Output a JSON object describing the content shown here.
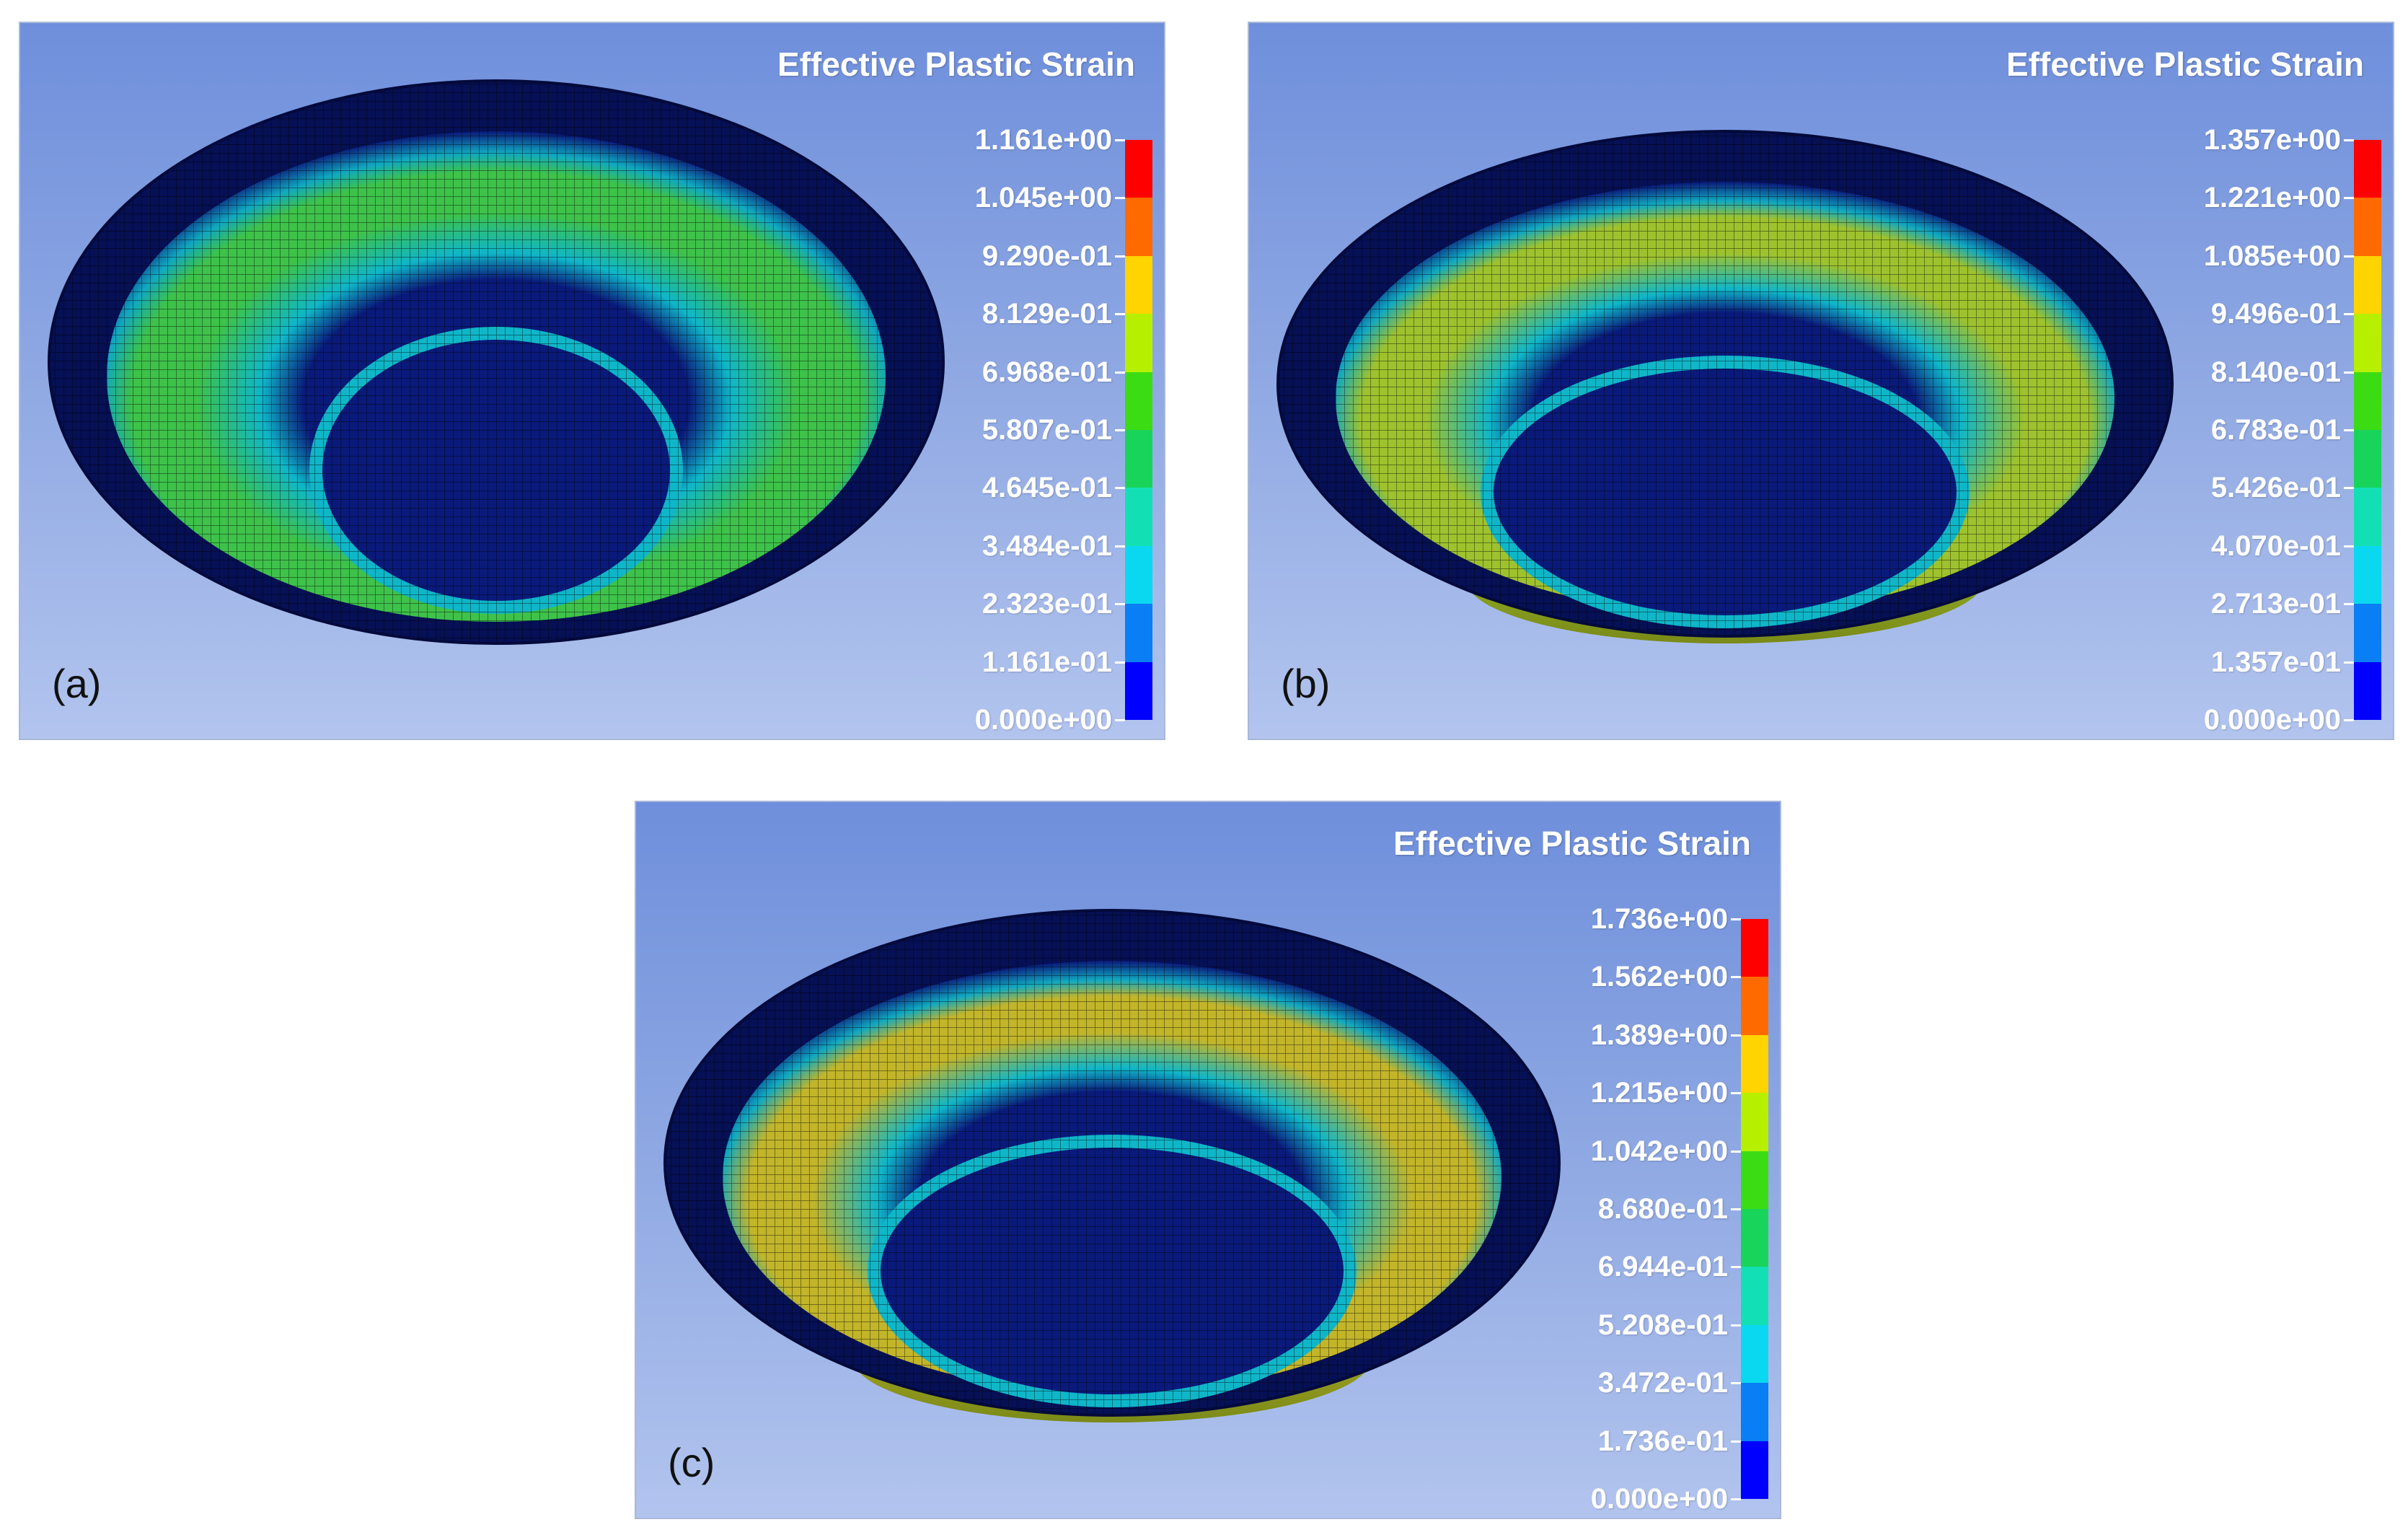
{
  "panels": [
    {
      "id": "a",
      "label": "(a)",
      "title": "Effective Plastic Strain",
      "legend": [
        "1.161e+00",
        "1.045e+00",
        "9.290e-01",
        "8.129e-01",
        "6.968e-01",
        "5.807e-01",
        "4.645e-01",
        "3.484e-01",
        "2.323e-01",
        "1.161e-01",
        "0.000e+00"
      ],
      "max_strain_color": "#3ec24a"
    },
    {
      "id": "b",
      "label": "(b)",
      "title": "Effective Plastic Strain",
      "legend": [
        "1.357e+00",
        "1.221e+00",
        "1.085e+00",
        "9.496e-01",
        "8.140e-01",
        "6.783e-01",
        "5.426e-01",
        "4.070e-01",
        "2.713e-01",
        "1.357e-01",
        "0.000e+00"
      ],
      "max_strain_color": "#9ec22e"
    },
    {
      "id": "c",
      "label": "(c)",
      "title": "Effective Plastic Strain",
      "legend": [
        "1.736e+00",
        "1.562e+00",
        "1.389e+00",
        "1.215e+00",
        "1.042e+00",
        "8.680e-01",
        "6.944e-01",
        "5.208e-01",
        "3.472e-01",
        "1.736e-01",
        "0.000e+00"
      ],
      "max_strain_color": "#c2b52a"
    }
  ],
  "colors": {
    "scale": [
      "#ff0000",
      "#ff6a00",
      "#ffd400",
      "#b6f000",
      "#3cdc14",
      "#19d45a",
      "#12e0b4",
      "#0ad8f0",
      "#0a7ef5",
      "#0000ff"
    ],
    "bowl_base": "#0a1a7a",
    "bowl_dark": "#061055"
  }
}
